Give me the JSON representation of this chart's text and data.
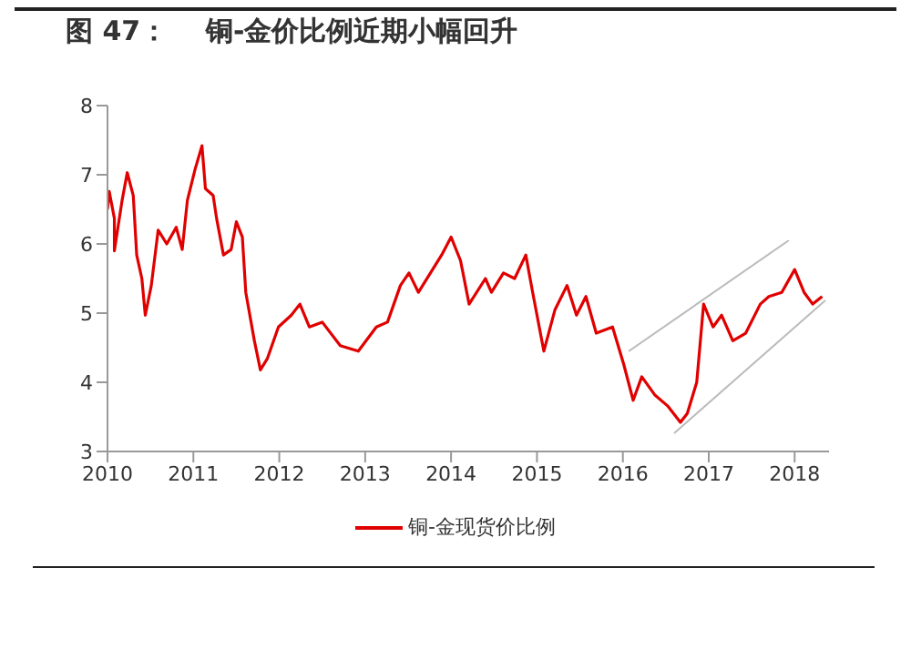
{
  "chart_data": {
    "type": "line",
    "title": "图 47：    铜-金价比例近期小幅回升",
    "x": [
      2010.0,
      2010.02,
      2010.08,
      2010.08,
      2010.17,
      2010.23,
      2010.3,
      2010.34,
      2010.4,
      2010.44,
      2010.51,
      2010.59,
      2010.69,
      2010.8,
      2010.87,
      2010.93,
      2011.02,
      2011.1,
      2011.14,
      2011.23,
      2011.27,
      2011.35,
      2011.44,
      2011.5,
      2011.57,
      2011.61,
      2011.71,
      2011.78,
      2011.86,
      2011.99,
      2012.14,
      2012.24,
      2012.35,
      2012.5,
      2012.71,
      2012.92,
      2013.13,
      2013.26,
      2013.41,
      2013.51,
      2013.62,
      2013.76,
      2013.89,
      2014.0,
      2014.11,
      2014.21,
      2014.4,
      2014.47,
      2014.61,
      2014.74,
      2014.87,
      2014.95,
      2015.08,
      2015.21,
      2015.35,
      2015.46,
      2015.57,
      2015.69,
      2015.88,
      2016.01,
      2016.12,
      2016.22,
      2016.37,
      2016.52,
      2016.67,
      2016.75,
      2016.86,
      2016.94,
      2017.05,
      2017.15,
      2017.28,
      2017.43,
      2017.6,
      2017.7,
      2017.85,
      2018.0,
      2018.11,
      2018.21,
      2018.32
    ],
    "series": [
      {
        "name": "铜-金现货价比例",
        "color": "#e00000",
        "values": [
          6.5,
          6.76,
          6.37,
          5.9,
          6.63,
          7.03,
          6.7,
          5.84,
          5.5,
          4.97,
          5.4,
          6.2,
          6.0,
          6.24,
          5.92,
          6.63,
          7.08,
          7.42,
          6.8,
          6.7,
          6.37,
          5.84,
          5.92,
          6.32,
          6.1,
          5.3,
          4.6,
          4.18,
          4.34,
          4.8,
          4.97,
          5.13,
          4.8,
          4.87,
          4.53,
          4.45,
          4.8,
          4.87,
          5.4,
          5.58,
          5.3,
          5.58,
          5.84,
          6.1,
          5.76,
          5.13,
          5.5,
          5.3,
          5.58,
          5.5,
          5.84,
          5.3,
          4.45,
          5.05,
          5.4,
          4.97,
          5.24,
          4.71,
          4.8,
          4.26,
          3.74,
          4.08,
          3.82,
          3.66,
          3.42,
          3.55,
          4.0,
          5.13,
          4.8,
          4.97,
          4.6,
          4.71,
          5.13,
          5.24,
          5.3,
          5.63,
          5.3,
          5.13,
          5.24
        ]
      }
    ],
    "xlim": [
      2010,
      2018.4
    ],
    "xticks": [
      2010,
      2011,
      2012,
      2013,
      2014,
      2015,
      2016,
      2017,
      2018
    ],
    "ylim": [
      3,
      8
    ],
    "yticks": [
      3,
      4,
      5,
      6,
      7,
      8
    ],
    "grid": false,
    "legend": "bottom",
    "marker": "none",
    "line_style": "solid"
  }
}
